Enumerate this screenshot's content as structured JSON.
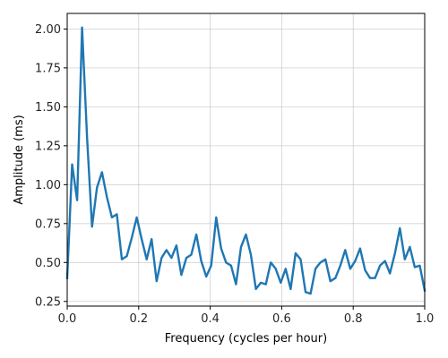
{
  "chart_data": {
    "type": "line",
    "title": "",
    "xlabel": "Frequency (cycles per hour)",
    "ylabel": "Amplitude (ms)",
    "xlim": [
      0.0,
      1.0
    ],
    "ylim": [
      0.22,
      2.1
    ],
    "grid": true,
    "x_ticks": [
      0.0,
      0.2,
      0.4,
      0.6,
      0.8,
      1.0
    ],
    "x_tick_labels": [
      "0.0",
      "0.2",
      "0.4",
      "0.6",
      "0.8",
      "1.0"
    ],
    "y_ticks": [
      0.25,
      0.5,
      0.75,
      1.0,
      1.25,
      1.5,
      1.75,
      2.0
    ],
    "y_tick_labels": [
      "0.25",
      "0.50",
      "0.75",
      "1.00",
      "1.25",
      "1.50",
      "1.75",
      "2.00"
    ],
    "series": [
      {
        "color": "#1f77b4",
        "x": [
          0.0,
          0.0139,
          0.0278,
          0.0417,
          0.0556,
          0.0694,
          0.0833,
          0.0972,
          0.1111,
          0.125,
          0.1389,
          0.1528,
          0.1667,
          0.1806,
          0.1944,
          0.2083,
          0.2222,
          0.2361,
          0.25,
          0.2639,
          0.2778,
          0.2917,
          0.3056,
          0.3194,
          0.3333,
          0.3472,
          0.3611,
          0.375,
          0.3889,
          0.4028,
          0.4167,
          0.4306,
          0.4444,
          0.4583,
          0.4722,
          0.4861,
          0.5,
          0.5139,
          0.5278,
          0.5417,
          0.5556,
          0.5694,
          0.5833,
          0.5972,
          0.6111,
          0.625,
          0.6389,
          0.6528,
          0.6667,
          0.6806,
          0.6944,
          0.7083,
          0.7222,
          0.7361,
          0.75,
          0.7639,
          0.7778,
          0.7917,
          0.8056,
          0.8194,
          0.8333,
          0.8472,
          0.8611,
          0.875,
          0.8889,
          0.9028,
          0.9167,
          0.9306,
          0.9444,
          0.9583,
          0.9722,
          0.9861,
          1.0
        ],
        "y": [
          0.4,
          1.13,
          0.9,
          2.01,
          1.3,
          0.73,
          0.98,
          1.08,
          0.92,
          0.79,
          0.81,
          0.52,
          0.54,
          0.66,
          0.79,
          0.65,
          0.52,
          0.65,
          0.38,
          0.53,
          0.58,
          0.53,
          0.61,
          0.42,
          0.53,
          0.55,
          0.68,
          0.51,
          0.41,
          0.48,
          0.79,
          0.59,
          0.5,
          0.48,
          0.36,
          0.6,
          0.68,
          0.55,
          0.33,
          0.37,
          0.36,
          0.5,
          0.46,
          0.37,
          0.46,
          0.33,
          0.56,
          0.52,
          0.31,
          0.3,
          0.46,
          0.5,
          0.52,
          0.38,
          0.4,
          0.48,
          0.58,
          0.46,
          0.51,
          0.59,
          0.45,
          0.4,
          0.4,
          0.48,
          0.51,
          0.43,
          0.56,
          0.72,
          0.52,
          0.6,
          0.47,
          0.48,
          0.32
        ]
      }
    ]
  }
}
